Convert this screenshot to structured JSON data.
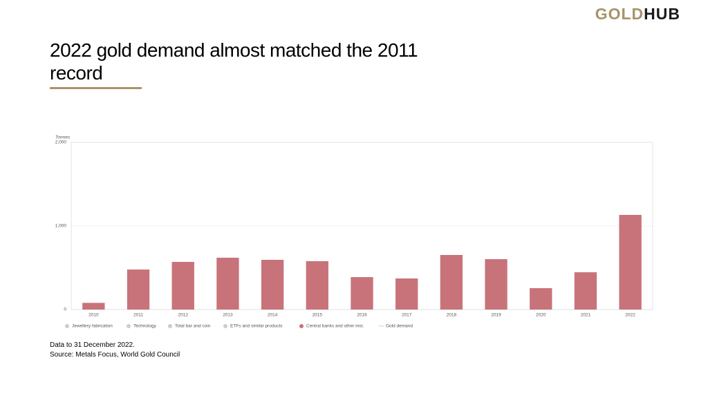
{
  "logo": {
    "part1": "GOLD",
    "part2": "HUB"
  },
  "chart_data": {
    "type": "bar",
    "title": "2022 gold demand almost matched the 2011 record",
    "y_label": "Tonnes",
    "categories": [
      "2010",
      "2011",
      "2012",
      "2013",
      "2014",
      "2015",
      "2016",
      "2017",
      "2018",
      "2019",
      "2020",
      "2021",
      "2022"
    ],
    "series": [
      {
        "name": "Jewellery fabrication",
        "color": "#cccccc",
        "visible": false,
        "marker": "dot"
      },
      {
        "name": "Technology",
        "color": "#cccccc",
        "visible": false,
        "marker": "dot"
      },
      {
        "name": "Total bar and coin",
        "color": "#cccccc",
        "visible": false,
        "marker": "dot"
      },
      {
        "name": "ETFs and similar products",
        "color": "#cccccc",
        "visible": false,
        "marker": "dot"
      },
      {
        "name": "Central banks and other inst.",
        "color": "#c8737a",
        "visible": true,
        "marker": "dot",
        "values": [
          80,
          479,
          570,
          620,
          595,
          579,
          388,
          372,
          653,
          603,
          256,
          446,
          1132
        ]
      },
      {
        "name": "Gold demand",
        "color": "#cccccc",
        "visible": false,
        "marker": "line"
      }
    ],
    "ylim": [
      0,
      2000
    ],
    "yticks": [
      0,
      {
        "value": 1000,
        "label": "1,000"
      },
      {
        "value": 2000,
        "label": "2,000"
      }
    ],
    "grid": true
  },
  "notes": [
    "Data to 31 December 2022.",
    "Source: Metals Focus, World Gold Council"
  ]
}
